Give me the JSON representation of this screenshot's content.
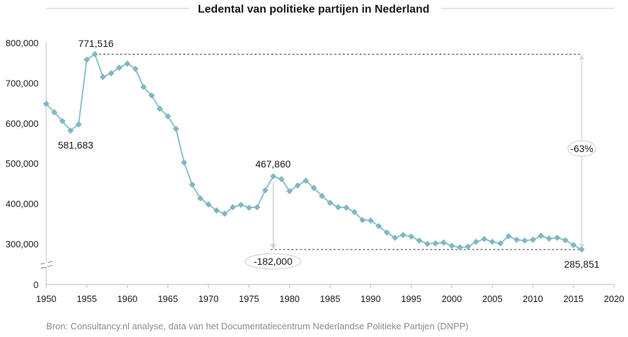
{
  "colors": {
    "series": "#8cc2c9",
    "marker": "#7fb8c1",
    "axis": "#bdbdbd",
    "text": "#1a1a1a",
    "source": "#8a8a8a",
    "arrow": "#cfcfcf"
  },
  "source": "Bron: Consultancy.nl analyse, data van het Documentatiecentrum Nederlandse Politieke Partijen  (DNPP)",
  "chart_data": {
    "type": "line",
    "title": "Ledental van politieke partijen in Nederland",
    "xlabel": "",
    "ylabel": "",
    "xlim": [
      1950,
      2020
    ],
    "ylim": [
      0,
      800000
    ],
    "axis_break": "between 0 and 300,000",
    "x_ticks": [
      1950,
      1955,
      1960,
      1965,
      1970,
      1975,
      1980,
      1985,
      1990,
      1995,
      2000,
      2005,
      2010,
      2015,
      2020
    ],
    "y_ticks": [
      {
        "value": 0,
        "label": "0"
      },
      {
        "value": 300000,
        "label": "300,000"
      },
      {
        "value": 400000,
        "label": "400,000"
      },
      {
        "value": 500000,
        "label": "500,000"
      },
      {
        "value": 600000,
        "label": "600,000"
      },
      {
        "value": 700000,
        "label": "700,000"
      },
      {
        "value": 800000,
        "label": "800,000"
      }
    ],
    "series": [
      {
        "name": "Ledental",
        "x": [
          1950,
          1951,
          1952,
          1953,
          1954,
          1955,
          1956,
          1957,
          1958,
          1959,
          1960,
          1961,
          1962,
          1963,
          1964,
          1965,
          1966,
          1967,
          1968,
          1969,
          1970,
          1971,
          1972,
          1973,
          1974,
          1975,
          1976,
          1977,
          1978,
          1979,
          1980,
          1981,
          1982,
          1983,
          1984,
          1985,
          1986,
          1987,
          1988,
          1989,
          1990,
          1991,
          1992,
          1993,
          1994,
          1995,
          1996,
          1997,
          1998,
          1999,
          2000,
          2001,
          2002,
          2003,
          2004,
          2005,
          2006,
          2007,
          2008,
          2009,
          2010,
          2011,
          2012,
          2013,
          2014,
          2015,
          2016
        ],
        "values": [
          648000,
          627000,
          605000,
          581683,
          597000,
          758000,
          771516,
          715000,
          724000,
          738000,
          748000,
          735000,
          690000,
          669000,
          636000,
          617000,
          586000,
          502000,
          447000,
          413000,
          398000,
          383000,
          375000,
          391000,
          397000,
          390000,
          391000,
          433000,
          467860,
          461000,
          431000,
          445000,
          457000,
          439000,
          419000,
          402000,
          391000,
          390000,
          379000,
          359000,
          358000,
          344000,
          328000,
          315000,
          322000,
          318000,
          308000,
          300000,
          301000,
          303000,
          295000,
          291000,
          293000,
          305000,
          312000,
          305000,
          301000,
          319000,
          310000,
          308000,
          310000,
          320000,
          313000,
          315000,
          309000,
          297000,
          285851
        ]
      }
    ],
    "annotations": [
      {
        "label": "771,516",
        "x": 1956,
        "value": 771516
      },
      {
        "label": "581,683",
        "x": 1953,
        "value": 581683
      },
      {
        "label": "467,860",
        "x": 1978,
        "value": 467860
      },
      {
        "label": "285,851",
        "x": 2016,
        "value": 285851
      },
      {
        "label": "-182,000",
        "from": 467860,
        "to": 285851,
        "x": 1978
      },
      {
        "label": "-63%",
        "from": 771516,
        "to": 285851,
        "x": 2017
      }
    ]
  }
}
